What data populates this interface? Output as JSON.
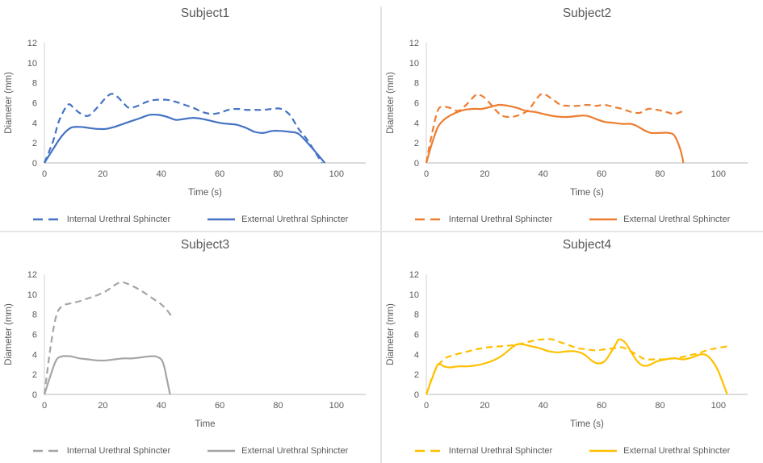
{
  "colors": {
    "subject1": "#4472C4",
    "subject2": "#ED7D31",
    "subject3": "#A5A5A5",
    "subject4": "#FFC000",
    "y_axis_line": "#D9D9D9",
    "x_axis_line": "#C6C6C6",
    "text": "#595959",
    "divider": "#E3E3E3"
  },
  "chart_data": [
    {
      "type": "line",
      "title": "Subject1",
      "xlabel": "Time (s)",
      "ylabel": "Diameter (mm)",
      "color": "#4472C4",
      "xlim": [
        0,
        110
      ],
      "ylim": [
        0,
        12
      ],
      "xticks": [
        0,
        20,
        40,
        60,
        80,
        100
      ],
      "yticks": [
        0,
        2,
        4,
        6,
        8,
        10,
        12
      ],
      "grid": false,
      "legend_position": "bottom",
      "series": [
        {
          "name": "Internal Urethral Sphincter",
          "style": "dashed",
          "points": [
            [
              0,
              0
            ],
            [
              3,
              2.2
            ],
            [
              5,
              4.2
            ],
            [
              8,
              5.8
            ],
            [
              10,
              5.5
            ],
            [
              12,
              5.0
            ],
            [
              15,
              4.7
            ],
            [
              18,
              5.5
            ],
            [
              21,
              6.5
            ],
            [
              23,
              6.9
            ],
            [
              25,
              6.6
            ],
            [
              27,
              6.0
            ],
            [
              29,
              5.5
            ],
            [
              32,
              5.7
            ],
            [
              35,
              6.1
            ],
            [
              38,
              6.3
            ],
            [
              42,
              6.3
            ],
            [
              45,
              6.1
            ],
            [
              48,
              5.8
            ],
            [
              51,
              5.5
            ],
            [
              54,
              5.1
            ],
            [
              57,
              4.9
            ],
            [
              60,
              5.0
            ],
            [
              63,
              5.3
            ],
            [
              66,
              5.4
            ],
            [
              69,
              5.3
            ],
            [
              72,
              5.3
            ],
            [
              75,
              5.3
            ],
            [
              78,
              5.4
            ],
            [
              81,
              5.4
            ],
            [
              84,
              4.8
            ],
            [
              87,
              3.4
            ],
            [
              90,
              2.3
            ],
            [
              95,
              0
            ]
          ]
        },
        {
          "name": "External Urethral Sphincter",
          "style": "solid",
          "points": [
            [
              0,
              0
            ],
            [
              3,
              1.4
            ],
            [
              6,
              2.7
            ],
            [
              9,
              3.5
            ],
            [
              12,
              3.6
            ],
            [
              15,
              3.5
            ],
            [
              18,
              3.4
            ],
            [
              21,
              3.4
            ],
            [
              24,
              3.6
            ],
            [
              27,
              3.9
            ],
            [
              30,
              4.2
            ],
            [
              33,
              4.5
            ],
            [
              36,
              4.8
            ],
            [
              39,
              4.8
            ],
            [
              42,
              4.6
            ],
            [
              45,
              4.3
            ],
            [
              48,
              4.4
            ],
            [
              51,
              4.5
            ],
            [
              54,
              4.4
            ],
            [
              57,
              4.2
            ],
            [
              60,
              4.0
            ],
            [
              63,
              3.9
            ],
            [
              66,
              3.8
            ],
            [
              69,
              3.5
            ],
            [
              72,
              3.1
            ],
            [
              75,
              3.0
            ],
            [
              78,
              3.2
            ],
            [
              81,
              3.2
            ],
            [
              84,
              3.1
            ],
            [
              87,
              2.9
            ],
            [
              91,
              1.7
            ],
            [
              96,
              0
            ]
          ]
        }
      ]
    },
    {
      "type": "line",
      "title": "Subject2",
      "xlabel": "Time (s)",
      "ylabel": "Diameter (mm)",
      "color": "#ED7D31",
      "xlim": [
        0,
        110
      ],
      "ylim": [
        0,
        12
      ],
      "xticks": [
        0,
        20,
        40,
        60,
        80,
        100
      ],
      "yticks": [
        0,
        2,
        4,
        6,
        8,
        10,
        12
      ],
      "grid": false,
      "legend_position": "bottom",
      "series": [
        {
          "name": "Internal Urethral Sphincter",
          "style": "dashed",
          "points": [
            [
              0,
              0
            ],
            [
              2,
              3.0
            ],
            [
              4,
              5.3
            ],
            [
              6,
              5.6
            ],
            [
              8,
              5.5
            ],
            [
              11,
              5.2
            ],
            [
              14,
              5.9
            ],
            [
              17,
              6.8
            ],
            [
              19,
              6.7
            ],
            [
              21,
              6.2
            ],
            [
              24,
              5.2
            ],
            [
              26,
              4.7
            ],
            [
              29,
              4.6
            ],
            [
              32,
              4.8
            ],
            [
              35,
              5.3
            ],
            [
              38,
              6.5
            ],
            [
              40,
              6.9
            ],
            [
              43,
              6.4
            ],
            [
              46,
              5.8
            ],
            [
              49,
              5.7
            ],
            [
              52,
              5.7
            ],
            [
              55,
              5.8
            ],
            [
              58,
              5.7
            ],
            [
              61,
              5.8
            ],
            [
              64,
              5.6
            ],
            [
              67,
              5.4
            ],
            [
              70,
              5.1
            ],
            [
              73,
              5.0
            ],
            [
              76,
              5.4
            ],
            [
              79,
              5.3
            ],
            [
              82,
              5.1
            ],
            [
              85,
              4.9
            ],
            [
              88,
              5.2
            ]
          ]
        },
        {
          "name": "External Urethral Sphincter",
          "style": "solid",
          "points": [
            [
              0,
              0
            ],
            [
              2,
              2.0
            ],
            [
              4,
              3.6
            ],
            [
              6,
              4.3
            ],
            [
              8,
              4.7
            ],
            [
              10,
              5.0
            ],
            [
              13,
              5.3
            ],
            [
              16,
              5.4
            ],
            [
              19,
              5.4
            ],
            [
              22,
              5.6
            ],
            [
              25,
              5.8
            ],
            [
              28,
              5.7
            ],
            [
              31,
              5.5
            ],
            [
              34,
              5.2
            ],
            [
              37,
              5.1
            ],
            [
              40,
              4.9
            ],
            [
              43,
              4.7
            ],
            [
              46,
              4.6
            ],
            [
              49,
              4.6
            ],
            [
              52,
              4.7
            ],
            [
              55,
              4.7
            ],
            [
              58,
              4.4
            ],
            [
              61,
              4.1
            ],
            [
              64,
              4.0
            ],
            [
              67,
              3.9
            ],
            [
              70,
              3.9
            ],
            [
              72,
              3.7
            ],
            [
              75,
              3.2
            ],
            [
              77,
              3.0
            ],
            [
              80,
              3.0
            ],
            [
              83,
              3.0
            ],
            [
              85,
              2.7
            ],
            [
              87,
              1.3
            ],
            [
              88,
              0
            ]
          ]
        }
      ]
    },
    {
      "type": "line",
      "title": "Subject3",
      "xlabel": "Time",
      "ylabel": "Diameter (mm)",
      "color": "#A5A5A5",
      "xlim": [
        0,
        110
      ],
      "ylim": [
        0,
        12
      ],
      "xticks": [
        0,
        20,
        40,
        60,
        80,
        100
      ],
      "yticks": [
        0,
        2,
        4,
        6,
        8,
        10,
        12
      ],
      "grid": false,
      "legend_position": "bottom",
      "series": [
        {
          "name": "Internal Urethral Sphincter",
          "style": "dashed",
          "points": [
            [
              0,
              0
            ],
            [
              2,
              4.5
            ],
            [
              4,
              7.8
            ],
            [
              6,
              8.8
            ],
            [
              9,
              9.1
            ],
            [
              12,
              9.3
            ],
            [
              15,
              9.6
            ],
            [
              18,
              9.9
            ],
            [
              21,
              10.3
            ],
            [
              24,
              10.9
            ],
            [
              26,
              11.2
            ],
            [
              28,
              11.1
            ],
            [
              31,
              10.7
            ],
            [
              34,
              10.2
            ],
            [
              37,
              9.6
            ],
            [
              40,
              9.0
            ],
            [
              42,
              8.4
            ],
            [
              44,
              7.6
            ]
          ]
        },
        {
          "name": "External Urethral Sphincter",
          "style": "solid",
          "points": [
            [
              0,
              0
            ],
            [
              2,
              1.8
            ],
            [
              4,
              3.4
            ],
            [
              6,
              3.8
            ],
            [
              9,
              3.8
            ],
            [
              12,
              3.6
            ],
            [
              15,
              3.5
            ],
            [
              18,
              3.4
            ],
            [
              21,
              3.4
            ],
            [
              24,
              3.5
            ],
            [
              27,
              3.6
            ],
            [
              30,
              3.6
            ],
            [
              33,
              3.7
            ],
            [
              36,
              3.8
            ],
            [
              38,
              3.8
            ],
            [
              40,
              3.5
            ],
            [
              41,
              2.8
            ],
            [
              42,
              1.4
            ],
            [
              43,
              0
            ]
          ]
        }
      ]
    },
    {
      "type": "line",
      "title": "Subject4",
      "xlabel": "Time (s)",
      "ylabel": "Diameter (mm)",
      "color": "#FFC000",
      "xlim": [
        0,
        110
      ],
      "ylim": [
        0,
        12
      ],
      "xticks": [
        0,
        20,
        40,
        60,
        80,
        100
      ],
      "yticks": [
        0,
        2,
        4,
        6,
        8,
        10,
        12
      ],
      "grid": false,
      "legend_position": "bottom",
      "series": [
        {
          "name": "Internal Urethral Sphincter",
          "style": "dashed",
          "points": [
            [
              0,
              0
            ],
            [
              3,
              2.4
            ],
            [
              6,
              3.5
            ],
            [
              9,
              3.9
            ],
            [
              13,
              4.2
            ],
            [
              17,
              4.5
            ],
            [
              21,
              4.7
            ],
            [
              25,
              4.8
            ],
            [
              29,
              4.9
            ],
            [
              33,
              5.1
            ],
            [
              37,
              5.4
            ],
            [
              40,
              5.5
            ],
            [
              43,
              5.5
            ],
            [
              46,
              5.2
            ],
            [
              49,
              4.9
            ],
            [
              52,
              4.6
            ],
            [
              55,
              4.5
            ],
            [
              58,
              4.4
            ],
            [
              61,
              4.5
            ],
            [
              64,
              4.6
            ],
            [
              67,
              4.7
            ],
            [
              70,
              4.3
            ],
            [
              73,
              3.8
            ],
            [
              75,
              3.5
            ],
            [
              78,
              3.5
            ],
            [
              81,
              3.5
            ],
            [
              84,
              3.6
            ],
            [
              87,
              3.7
            ],
            [
              90,
              3.9
            ],
            [
              93,
              4.1
            ],
            [
              96,
              4.4
            ],
            [
              99,
              4.6
            ],
            [
              103,
              4.8
            ]
          ]
        },
        {
          "name": "External Urethral Sphincter",
          "style": "solid",
          "points": [
            [
              0,
              0
            ],
            [
              2,
              1.6
            ],
            [
              4,
              3.0
            ],
            [
              6,
              2.8
            ],
            [
              8,
              2.7
            ],
            [
              11,
              2.8
            ],
            [
              14,
              2.8
            ],
            [
              17,
              2.9
            ],
            [
              20,
              3.1
            ],
            [
              23,
              3.4
            ],
            [
              26,
              3.9
            ],
            [
              29,
              4.6
            ],
            [
              31,
              5.0
            ],
            [
              33,
              5.0
            ],
            [
              36,
              4.8
            ],
            [
              39,
              4.6
            ],
            [
              42,
              4.3
            ],
            [
              45,
              4.2
            ],
            [
              48,
              4.3
            ],
            [
              51,
              4.3
            ],
            [
              54,
              4.0
            ],
            [
              57,
              3.3
            ],
            [
              59,
              3.1
            ],
            [
              61,
              3.3
            ],
            [
              63,
              4.1
            ],
            [
              65,
              5.1
            ],
            [
              66,
              5.5
            ],
            [
              68,
              5.2
            ],
            [
              70,
              4.3
            ],
            [
              72,
              3.4
            ],
            [
              74,
              2.9
            ],
            [
              76,
              2.9
            ],
            [
              79,
              3.3
            ],
            [
              82,
              3.5
            ],
            [
              85,
              3.6
            ],
            [
              88,
              3.5
            ],
            [
              91,
              3.7
            ],
            [
              94,
              4.0
            ],
            [
              96,
              3.9
            ],
            [
              98,
              3.3
            ],
            [
              100,
              2.3
            ],
            [
              103,
              0
            ]
          ]
        }
      ]
    }
  ]
}
